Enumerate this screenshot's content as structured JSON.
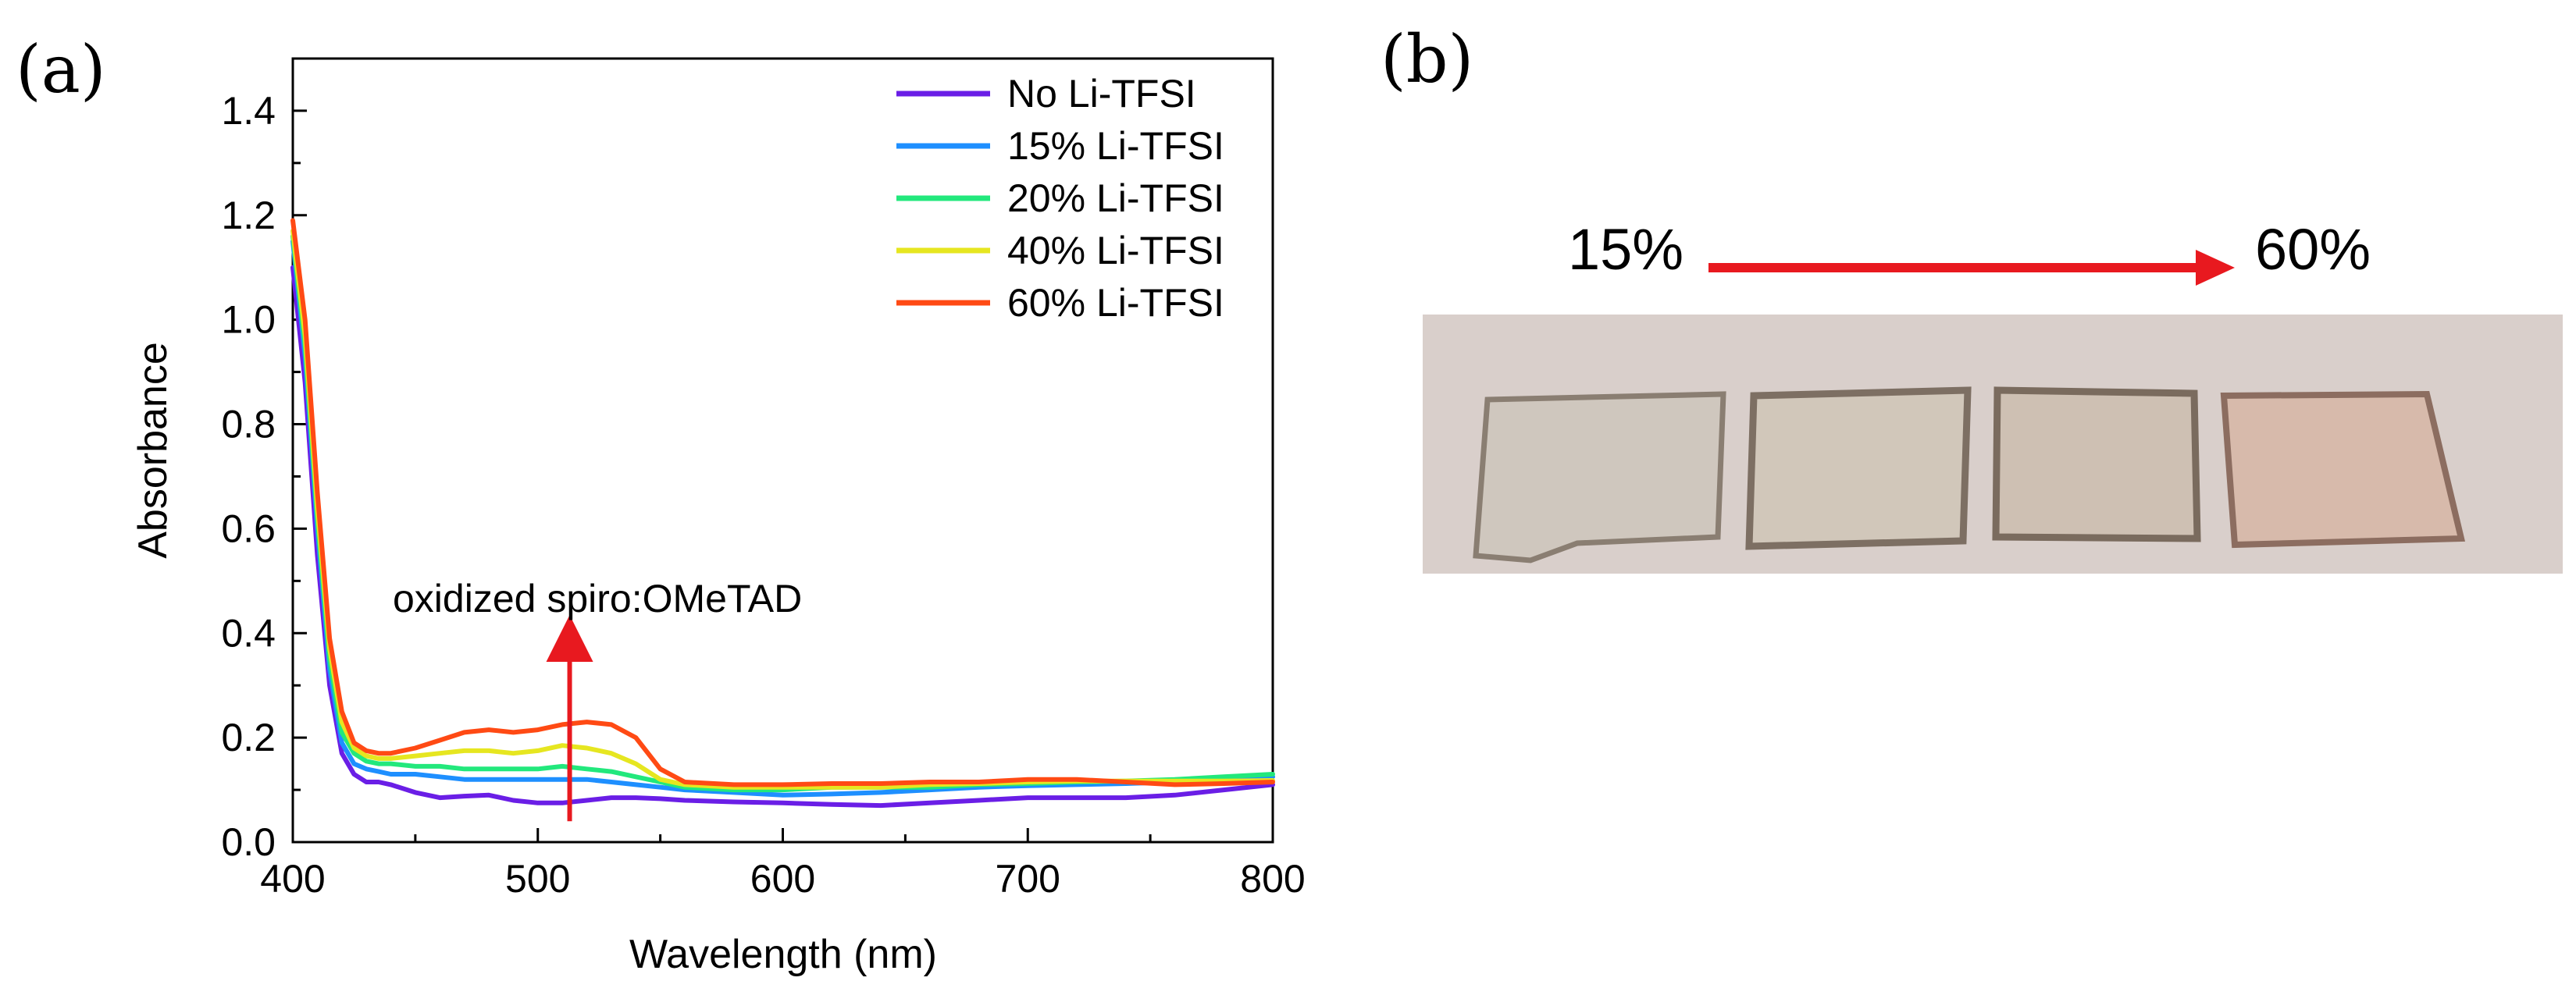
{
  "panels": {
    "a_label": "(a)",
    "b_label": "(b)"
  },
  "chart_data": {
    "type": "line",
    "xlabel": "Wavelength (nm)",
    "ylabel": "Absorbance",
    "xlim": [
      400,
      800
    ],
    "ylim": [
      0,
      1.5
    ],
    "xticks": [
      400,
      500,
      600,
      700,
      800
    ],
    "yticks": [
      0.0,
      0.2,
      0.4,
      0.6,
      0.8,
      1.0,
      1.2,
      1.4
    ],
    "ytick_labels": [
      "0.0",
      "0.2",
      "0.4",
      "0.6",
      "0.8",
      "1.0",
      "1.2",
      "1.4"
    ],
    "legend_position": "top-right",
    "annotation": {
      "text": "oxidized spiro:OMeTAD",
      "arrow_x": 513,
      "arrow_from": 0.04,
      "arrow_to": 0.39
    },
    "x": [
      400,
      405,
      410,
      415,
      420,
      425,
      430,
      435,
      440,
      450,
      460,
      470,
      480,
      490,
      500,
      510,
      520,
      530,
      540,
      550,
      560,
      580,
      600,
      620,
      640,
      660,
      680,
      700,
      720,
      740,
      760,
      780,
      800
    ],
    "series": [
      {
        "name": "No Li-TFSI",
        "color": "#6a1ee6",
        "values": [
          1.1,
          0.88,
          0.55,
          0.3,
          0.17,
          0.13,
          0.115,
          0.115,
          0.11,
          0.095,
          0.085,
          0.088,
          0.09,
          0.08,
          0.075,
          0.075,
          0.08,
          0.085,
          0.085,
          0.083,
          0.08,
          0.077,
          0.075,
          0.072,
          0.07,
          0.075,
          0.08,
          0.085,
          0.085,
          0.085,
          0.09,
          0.1,
          0.11
        ]
      },
      {
        "name": "15% Li-TFSI",
        "color": "#1e8fff",
        "values": [
          1.15,
          0.93,
          0.6,
          0.33,
          0.19,
          0.15,
          0.14,
          0.135,
          0.13,
          0.13,
          0.125,
          0.12,
          0.12,
          0.12,
          0.12,
          0.12,
          0.12,
          0.115,
          0.11,
          0.105,
          0.1,
          0.095,
          0.09,
          0.092,
          0.095,
          0.1,
          0.105,
          0.108,
          0.11,
          0.112,
          0.115,
          0.12,
          0.125
        ]
      },
      {
        "name": "20% Li-TFSI",
        "color": "#22e87c",
        "values": [
          1.16,
          0.95,
          0.62,
          0.35,
          0.21,
          0.17,
          0.155,
          0.15,
          0.15,
          0.145,
          0.145,
          0.14,
          0.14,
          0.14,
          0.14,
          0.145,
          0.14,
          0.135,
          0.125,
          0.115,
          0.105,
          0.1,
          0.1,
          0.105,
          0.105,
          0.105,
          0.11,
          0.112,
          0.115,
          0.117,
          0.12,
          0.125,
          0.13
        ]
      },
      {
        "name": "40% Li-TFSI",
        "color": "#e6e620",
        "values": [
          1.17,
          0.97,
          0.64,
          0.37,
          0.23,
          0.18,
          0.165,
          0.16,
          0.16,
          0.165,
          0.17,
          0.175,
          0.175,
          0.17,
          0.175,
          0.185,
          0.18,
          0.17,
          0.15,
          0.12,
          0.11,
          0.105,
          0.105,
          0.105,
          0.105,
          0.11,
          0.112,
          0.115,
          0.117,
          0.117,
          0.117,
          0.117,
          0.118
        ]
      },
      {
        "name": "60% Li-TFSI",
        "color": "#ff4a14",
        "values": [
          1.19,
          1.0,
          0.67,
          0.39,
          0.25,
          0.19,
          0.175,
          0.17,
          0.17,
          0.18,
          0.195,
          0.21,
          0.215,
          0.21,
          0.215,
          0.225,
          0.23,
          0.225,
          0.2,
          0.14,
          0.115,
          0.11,
          0.11,
          0.112,
          0.112,
          0.115,
          0.115,
          0.12,
          0.12,
          0.115,
          0.11,
          0.112,
          0.115
        ]
      }
    ]
  },
  "photo": {
    "start_label": "15%",
    "end_label": "60%",
    "arrow_color": "#e8191f",
    "background_color": "#d9cfcb",
    "samples": [
      {
        "name": "sample-15",
        "tint": "#cfc6bd"
      },
      {
        "name": "sample-20",
        "tint": "#d1c6b8"
      },
      {
        "name": "sample-40",
        "tint": "#cdbfb1"
      },
      {
        "name": "sample-60",
        "tint": "#d7b8a9"
      }
    ]
  }
}
